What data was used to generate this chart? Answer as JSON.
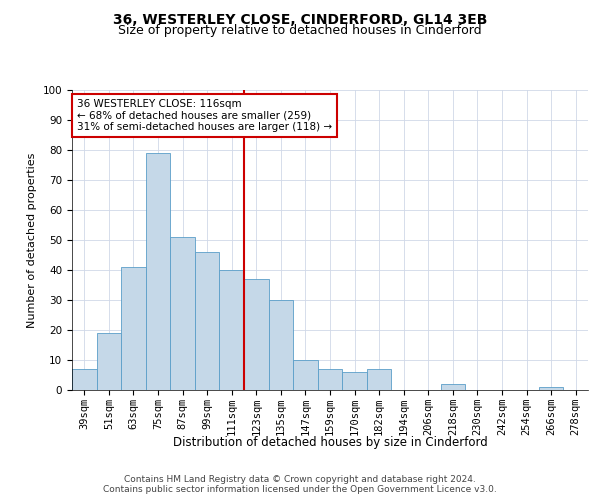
{
  "title1": "36, WESTERLEY CLOSE, CINDERFORD, GL14 3EB",
  "title2": "Size of property relative to detached houses in Cinderford",
  "xlabel": "Distribution of detached houses by size in Cinderford",
  "ylabel": "Number of detached properties",
  "categories": [
    "39sqm",
    "51sqm",
    "63sqm",
    "75sqm",
    "87sqm",
    "99sqm",
    "111sqm",
    "123sqm",
    "135sqm",
    "147sqm",
    "159sqm",
    "170sqm",
    "182sqm",
    "194sqm",
    "206sqm",
    "218sqm",
    "230sqm",
    "242sqm",
    "254sqm",
    "266sqm",
    "278sqm"
  ],
  "values": [
    7,
    19,
    41,
    79,
    51,
    46,
    40,
    37,
    30,
    10,
    7,
    6,
    7,
    0,
    0,
    2,
    0,
    0,
    0,
    1,
    0
  ],
  "bar_color": "#c5d8e8",
  "bar_edge_color": "#5a9ec8",
  "vline_color": "#cc0000",
  "annotation_text": "36 WESTERLEY CLOSE: 116sqm\n← 68% of detached houses are smaller (259)\n31% of semi-detached houses are larger (118) →",
  "annotation_box_color": "#ffffff",
  "annotation_box_edge": "#cc0000",
  "ylim": [
    0,
    100
  ],
  "yticks": [
    0,
    10,
    20,
    30,
    40,
    50,
    60,
    70,
    80,
    90,
    100
  ],
  "grid_color": "#d0d8e8",
  "footer1": "Contains HM Land Registry data © Crown copyright and database right 2024.",
  "footer2": "Contains public sector information licensed under the Open Government Licence v3.0.",
  "title1_fontsize": 10,
  "title2_fontsize": 9,
  "xlabel_fontsize": 8.5,
  "ylabel_fontsize": 8,
  "tick_fontsize": 7.5,
  "annotation_fontsize": 7.5,
  "footer_fontsize": 6.5,
  "vline_bin_index": 7
}
